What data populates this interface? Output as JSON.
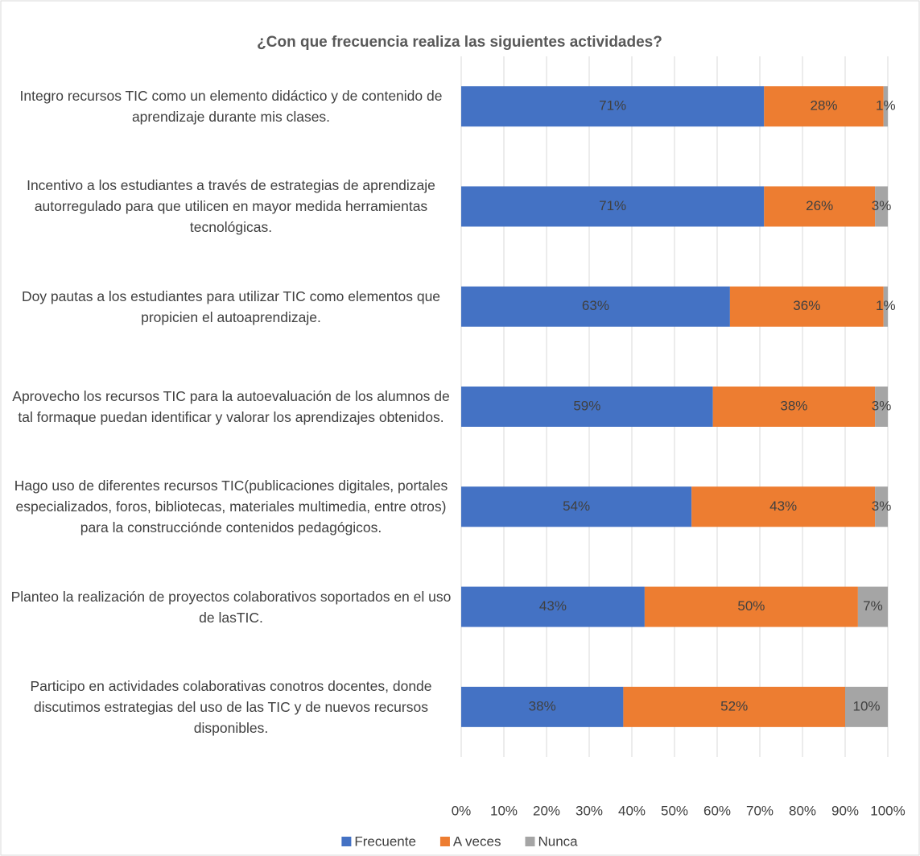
{
  "chart_data": {
    "type": "stacked_barh",
    "title": "¿Con que frecuencia realiza las siguientes actividades?",
    "categories": [
      "Integro recursos TIC como un elemento didáctico y de contenido de aprendizaje durante mis clases.",
      "Incentivo a los estudiantes a través de estrategias de aprendizaje autorregulado para que utilicen en mayor medida herramientas tecnológicas.",
      "Doy pautas a los estudiantes para utilizar TIC como elementos que propicien el autoaprendizaje.",
      "Aprovecho los recursos TIC para la autoevaluación de los alumnos de tal formaque puedan identificar y valorar los aprendizajes obtenidos.",
      "Hago uso de diferentes recursos TIC(publicaciones digitales, portales especializados, foros, bibliotecas, materiales multimedia, entre otros) para la construcciónde contenidos pedagógicos.",
      "Planteo la realización de proyectos colaborativos soportados en el uso de lasTIC.",
      "Participo en actividades colaborativas conotros docentes, donde discutimos estrategias del uso de las TIC y de nuevos recursos disponibles."
    ],
    "series": [
      {
        "name": "Frecuente",
        "color": "#4472c4",
        "values": [
          71,
          71,
          63,
          59,
          54,
          43,
          38
        ],
        "value_labels": [
          "71%",
          "71%",
          "63%",
          "59%",
          "54%",
          "43%",
          "38%"
        ]
      },
      {
        "name": "A veces",
        "color": "#ed7d31",
        "values": [
          28,
          26,
          36,
          38,
          43,
          50,
          52
        ],
        "value_labels": [
          "28%",
          "26%",
          "36%",
          "38%",
          "43%",
          "50%",
          "52%"
        ]
      },
      {
        "name": "Nunca",
        "color": "#a5a5a5",
        "values": [
          1,
          3,
          1,
          3,
          3,
          7,
          10
        ],
        "value_labels": [
          "1%",
          "3%",
          "1%",
          "3%",
          "3%",
          "7%",
          "10%"
        ]
      }
    ],
    "xlim": [
      0,
      100
    ],
    "xticks": [
      {
        "value": 0,
        "label": "0%"
      },
      {
        "value": 10,
        "label": "10%"
      },
      {
        "value": 20,
        "label": "20%"
      },
      {
        "value": 30,
        "label": "30%"
      },
      {
        "value": 40,
        "label": "40%"
      },
      {
        "value": 50,
        "label": "50%"
      },
      {
        "value": 60,
        "label": "60%"
      },
      {
        "value": 70,
        "label": "70%"
      },
      {
        "value": 80,
        "label": "80%"
      },
      {
        "value": 90,
        "label": "90%"
      },
      {
        "value": 100,
        "label": "100%"
      }
    ],
    "grid": true,
    "legend": "bottom"
  }
}
